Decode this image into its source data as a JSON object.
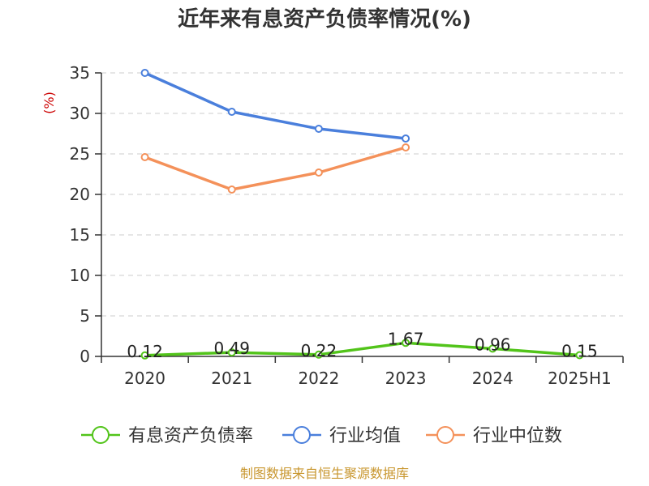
{
  "chart_data": {
    "type": "line",
    "title": "近年来有息资产负债率情况(%)",
    "ylabel": "(%)",
    "xlabel": "",
    "categories": [
      "2020",
      "2021",
      "2022",
      "2023",
      "2024",
      "2025H1"
    ],
    "ylim": [
      0,
      35
    ],
    "yticks": [
      0,
      5,
      10,
      15,
      20,
      25,
      30,
      35
    ],
    "grid": true,
    "legend_position": "bottom",
    "series": [
      {
        "name": "有息资产负债率",
        "color": "#52c41a",
        "values": [
          0.12,
          0.49,
          0.22,
          1.67,
          0.96,
          0.15
        ],
        "labels": [
          "0.12",
          "0.49",
          "0.22",
          "1.67",
          "0.96",
          "0.15"
        ]
      },
      {
        "name": "行业均值",
        "color": "#4a7fdc",
        "values": [
          35.0,
          30.2,
          28.1,
          26.9,
          null,
          null
        ],
        "labels": []
      },
      {
        "name": "行业中位数",
        "color": "#f4915a",
        "values": [
          24.6,
          20.6,
          22.7,
          25.8,
          null,
          null
        ],
        "labels": []
      }
    ]
  },
  "source": "制图数据来自恒生聚源数据库"
}
